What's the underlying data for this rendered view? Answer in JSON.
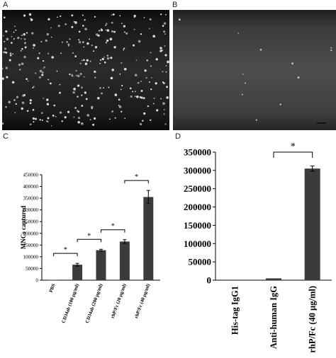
{
  "panels": {
    "a": "A",
    "b": "B",
    "c": "C",
    "d": "D"
  },
  "chart_data": [
    {
      "type": "bar",
      "panel": "C",
      "categories": [
        "PBS",
        "CD34ab (100 µg/ml)",
        "CD34ab (200 µg/ml)",
        "rhP/Fc (20 µg/ml)",
        "rhP/Fc (40 µg/ml)"
      ],
      "values": [
        0,
        66000,
        128000,
        165000,
        355000
      ],
      "errors": [
        0,
        6000,
        4000,
        8000,
        28000
      ],
      "ylabel": "MNCs captured",
      "ylim": [
        0,
        450000
      ],
      "yticks": [
        0,
        50000,
        100000,
        150000,
        200000,
        250000,
        300000,
        350000,
        400000,
        450000
      ],
      "significance": [
        {
          "from": 0,
          "to": 1,
          "label": "*"
        },
        {
          "from": 1,
          "to": 2,
          "label": "*"
        },
        {
          "from": 2,
          "to": 3,
          "label": "*"
        },
        {
          "from": 3,
          "to": 4,
          "label": "*"
        }
      ],
      "bar_color": "#3b3b3b"
    },
    {
      "type": "bar",
      "panel": "D",
      "categories": [
        "His-tag IgG1",
        "Anti-human IgG",
        "rhP/Fc (40 µg/ml)"
      ],
      "values": [
        0,
        5000,
        305000
      ],
      "errors": [
        0,
        0,
        7000
      ],
      "ylim": [
        0,
        350000
      ],
      "yticks": [
        0,
        50000,
        100000,
        150000,
        200000,
        250000,
        300000,
        350000
      ],
      "significance": [
        {
          "from": 1,
          "to": 2,
          "label": "*"
        }
      ],
      "bar_color": "#3b3b3b"
    }
  ]
}
